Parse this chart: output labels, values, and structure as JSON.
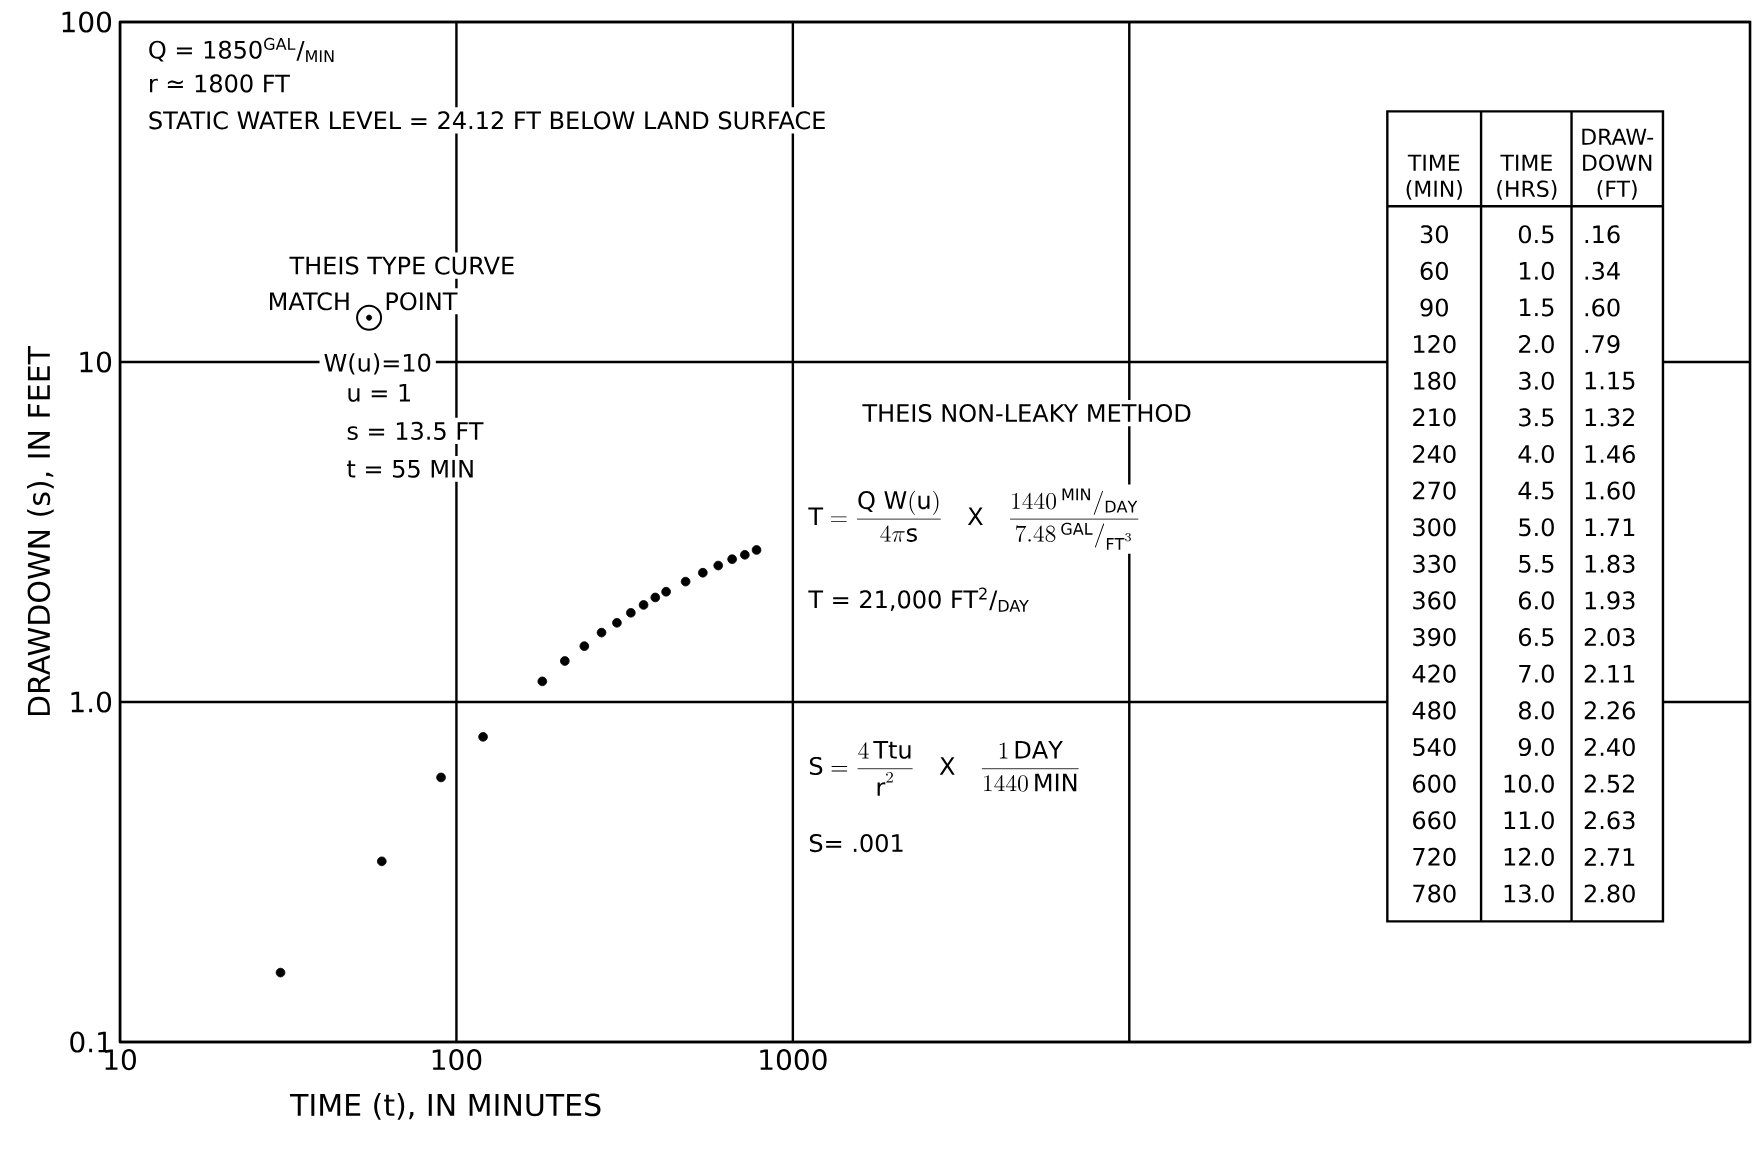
{
  "chart_data": {
    "type": "scatter",
    "xlabel": "TIME (t), IN MINUTES",
    "ylabel": "DRAWDOWN (s), IN FEET",
    "log": "xy",
    "grid": true,
    "xlim": [
      10,
      700000
    ],
    "ylim": [
      0.1,
      100
    ],
    "xticks": [
      10,
      100,
      1000,
      {
        "value": 10000,
        "label": null
      }
    ],
    "yticks": [
      {
        "value": 0.1,
        "label": "0.1"
      },
      {
        "value": 1,
        "label": "1.0"
      },
      10,
      100
    ],
    "series": [
      {
        "color": "#000000",
        "x": [
          30,
          60,
          90,
          120,
          180,
          210,
          240,
          270,
          300,
          330,
          360,
          390,
          420,
          480,
          540,
          600,
          660,
          720,
          780
        ],
        "values": [
          0.16,
          0.34,
          0.6,
          0.79,
          1.15,
          1.32,
          1.46,
          1.6,
          1.71,
          1.83,
          1.93,
          2.03,
          2.11,
          2.26,
          2.4,
          2.52,
          2.63,
          2.71,
          2.8
        ]
      },
      {
        "type": "scatter",
        "color": "#000000",
        "x": [
          55
        ],
        "values": [
          13.5
        ]
      }
    ],
    "annotations": [
      "Q = 1850$^{GAL}$/$_{MIN}$",
      "r ≃ 1800 FT",
      "STATIC WATER LEVEL = 24.12 FT BELOW LAND SURFACE",
      "THEIS TYPE CURVE",
      "MATCH",
      "POINT",
      "W(u)=10",
      "u = 1",
      "s = 13.5 FT",
      "t = 55 MIN",
      "THEIS NON-LEAKY METHOD",
      "\\mathrm{T} = \\frac{\\mathrm{Q\\ W(u)}}{4\\pi \\mathrm{s}}\\quad \\mathrm{X}\\quad \\frac{1440\\,^{\\mathrm{MIN}}/_{\\mathrm{DAY}}}{7.48\\,^{\\mathrm{GAL}}/_{\\mathrm{FT}^{3}}}",
      "T = 21,000 FT$^{2}$/$_{DAY}$",
      "\\mathrm{S} = \\frac{4\\,\\mathrm{Ttu}}{\\mathrm{r}^{2}}\\quad \\mathrm{X}\\quad \\frac{1\\,\\mathrm{DAY}}{1440\\,\\mathrm{MIN}}",
      "S= .001",
      "TIME (MIN)",
      "TIME (HRS)",
      "DRAW-DOWN (FT)",
      "30",
      "60",
      "90",
      "120",
      "180",
      "210",
      "240",
      "270",
      "300",
      "330",
      "360",
      "390",
      "420",
      "480",
      "540",
      "600",
      "660",
      "720",
      "780",
      "0.5",
      "1.0",
      "1.5",
      "2.0",
      "3.0",
      "3.5",
      "4.0",
      "4.5",
      "5.0",
      "5.5",
      "6.0",
      "6.5",
      "7.0",
      "8.0",
      "9.0",
      "10.0",
      "11.0",
      "12.0",
      "13.0",
      ".16",
      ".34",
      ".60",
      ".79",
      "1.15",
      "1.32",
      "1.46",
      "1.60",
      "1.71",
      "1.83",
      "1.93",
      "2.03",
      "2.11",
      "2.26",
      "2.40",
      "2.52",
      "2.63",
      "2.71",
      "2.80"
    ]
  }
}
